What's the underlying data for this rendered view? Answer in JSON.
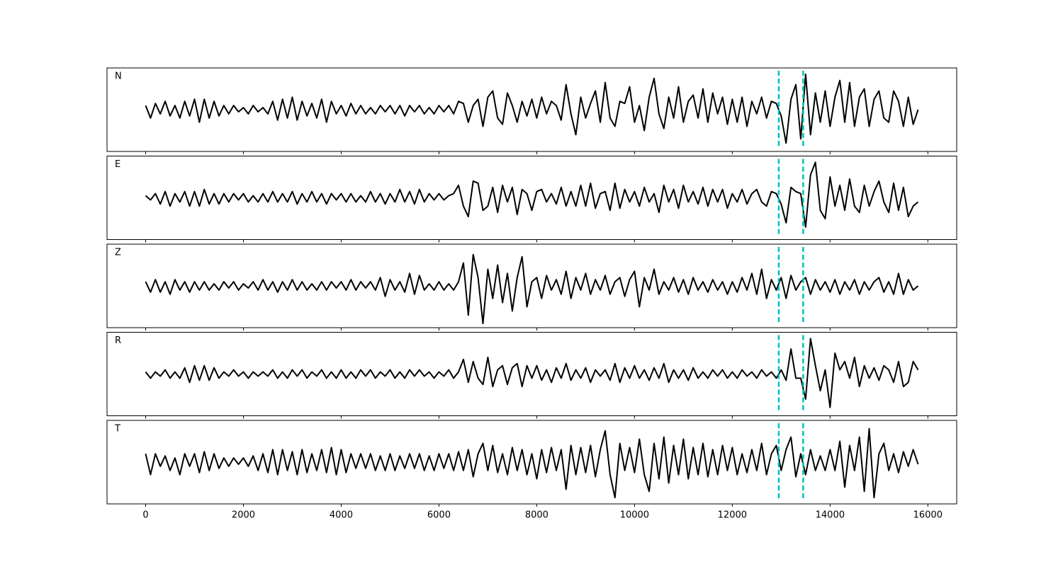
{
  "chart_data": {
    "type": "line",
    "x": [
      0,
      100,
      200,
      300,
      400,
      500,
      600,
      700,
      800,
      900,
      1000,
      1100,
      1200,
      1300,
      1400,
      1500,
      1600,
      1700,
      1800,
      1900,
      2000,
      2100,
      2200,
      2300,
      2400,
      2500,
      2600,
      2700,
      2800,
      2900,
      3000,
      3100,
      3200,
      3300,
      3400,
      3500,
      3600,
      3700,
      3800,
      3900,
      4000,
      4100,
      4200,
      4300,
      4400,
      4500,
      4600,
      4700,
      4800,
      4900,
      5000,
      5100,
      5200,
      5300,
      5400,
      5500,
      5600,
      5700,
      5800,
      5900,
      6000,
      6100,
      6200,
      6300,
      6400,
      6500,
      6600,
      6700,
      6800,
      6900,
      7000,
      7100,
      7200,
      7300,
      7400,
      7500,
      7600,
      7700,
      7800,
      7900,
      8000,
      8100,
      8200,
      8300,
      8400,
      8500,
      8600,
      8700,
      8800,
      8900,
      9000,
      9100,
      9200,
      9300,
      9400,
      9500,
      9600,
      9700,
      9800,
      9900,
      10000,
      10100,
      10200,
      10300,
      10400,
      10500,
      10600,
      10700,
      10800,
      10900,
      11000,
      11100,
      11200,
      11300,
      11400,
      11500,
      11600,
      11700,
      11800,
      11900,
      12000,
      12100,
      12200,
      12300,
      12400,
      12500,
      12600,
      12700,
      12800,
      12900,
      13000,
      13100,
      13200,
      13300,
      13400,
      13500,
      13600,
      13700,
      13800,
      13900,
      14000,
      14100,
      14200,
      14300,
      14400,
      14500,
      14600,
      14700,
      14800,
      14900,
      15000,
      15100,
      15200,
      15300,
      15400,
      15500,
      15600,
      15700,
      15800
    ],
    "series": [
      {
        "name": "N",
        "color": "#000000",
        "values": [
          0.1,
          -0.2,
          0.15,
          -0.1,
          0.2,
          -0.15,
          0.1,
          -0.2,
          0.2,
          -0.15,
          0.25,
          -0.3,
          0.25,
          -0.2,
          0.2,
          -0.15,
          0.1,
          -0.1,
          0.1,
          -0.05,
          0.05,
          -0.1,
          0.1,
          -0.05,
          0.05,
          -0.1,
          0.2,
          -0.25,
          0.25,
          -0.2,
          0.3,
          -0.25,
          0.2,
          -0.15,
          0.15,
          -0.2,
          0.25,
          -0.3,
          0.2,
          -0.1,
          0.1,
          -0.15,
          0.15,
          -0.1,
          0.1,
          -0.1,
          0.05,
          -0.1,
          0.1,
          -0.05,
          0.1,
          -0.1,
          0.1,
          -0.15,
          0.1,
          -0.05,
          0.1,
          -0.1,
          0.05,
          -0.1,
          0.1,
          -0.05,
          0.1,
          -0.1,
          0.2,
          0.15,
          -0.3,
          0.1,
          0.25,
          -0.4,
          0.3,
          0.45,
          -0.2,
          -0.35,
          0.4,
          0.1,
          -0.3,
          0.2,
          -0.15,
          0.25,
          -0.2,
          0.3,
          -0.1,
          0.2,
          0.1,
          -0.25,
          0.6,
          -0.1,
          -0.6,
          0.3,
          -0.2,
          0.15,
          0.45,
          -0.3,
          0.65,
          -0.2,
          -0.4,
          0.2,
          0.15,
          0.55,
          -0.3,
          0.1,
          -0.5,
          0.3,
          0.75,
          -0.1,
          -0.45,
          0.3,
          -0.2,
          0.55,
          -0.3,
          0.2,
          0.35,
          -0.2,
          0.5,
          -0.3,
          0.4,
          -0.1,
          0.3,
          -0.35,
          0.25,
          -0.3,
          0.3,
          -0.4,
          0.2,
          -0.1,
          0.3,
          -0.2,
          0.2,
          0.15,
          -0.15,
          -0.8,
          0.25,
          0.6,
          -0.7,
          0.85,
          -0.6,
          0.4,
          -0.3,
          0.45,
          -0.4,
          0.3,
          0.7,
          -0.3,
          0.65,
          -0.4,
          0.3,
          0.5,
          -0.4,
          0.25,
          0.45,
          -0.2,
          -0.3,
          0.45,
          0.2,
          -0.4,
          0.3,
          -0.35,
          0.0
        ]
      },
      {
        "name": "E",
        "color": "#000000",
        "values": [
          0.05,
          -0.05,
          0.1,
          -0.15,
          0.15,
          -0.2,
          0.1,
          -0.1,
          0.15,
          -0.2,
          0.15,
          -0.2,
          0.2,
          -0.15,
          0.1,
          -0.15,
          0.1,
          -0.1,
          0.1,
          -0.05,
          0.1,
          -0.1,
          0.05,
          -0.1,
          0.1,
          -0.1,
          0.15,
          -0.1,
          0.1,
          -0.1,
          0.15,
          -0.15,
          0.1,
          -0.1,
          0.15,
          -0.1,
          0.1,
          -0.15,
          0.1,
          -0.05,
          0.1,
          -0.1,
          0.1,
          -0.1,
          0.05,
          -0.1,
          0.15,
          -0.1,
          0.1,
          -0.15,
          0.1,
          -0.1,
          0.2,
          -0.1,
          0.15,
          -0.15,
          0.2,
          -0.1,
          0.1,
          -0.05,
          0.1,
          -0.05,
          0.05,
          0.1,
          0.3,
          -0.2,
          -0.45,
          0.4,
          0.35,
          -0.3,
          -0.2,
          0.25,
          -0.35,
          0.3,
          -0.1,
          0.25,
          -0.4,
          0.2,
          0.1,
          -0.3,
          0.15,
          0.2,
          -0.1,
          0.1,
          -0.15,
          0.25,
          -0.2,
          0.15,
          -0.2,
          0.3,
          -0.2,
          0.35,
          -0.25,
          0.1,
          0.15,
          -0.3,
          0.35,
          -0.25,
          0.2,
          -0.1,
          0.15,
          -0.2,
          0.25,
          -0.1,
          0.1,
          -0.35,
          0.3,
          -0.1,
          0.2,
          -0.25,
          0.3,
          -0.1,
          0.15,
          -0.15,
          0.25,
          -0.2,
          0.2,
          -0.1,
          0.2,
          -0.25,
          0.1,
          -0.1,
          0.2,
          -0.15,
          0.1,
          0.2,
          -0.1,
          -0.2,
          0.15,
          0.1,
          -0.15,
          -0.6,
          0.25,
          0.15,
          0.1,
          -0.7,
          0.55,
          0.85,
          -0.3,
          -0.5,
          0.5,
          -0.2,
          0.3,
          -0.3,
          0.45,
          -0.2,
          -0.35,
          0.3,
          -0.2,
          0.15,
          0.4,
          -0.1,
          -0.35,
          0.35,
          -0.3,
          0.25,
          -0.45,
          -0.2,
          -0.1
        ]
      },
      {
        "name": "Z",
        "color": "#000000",
        "values": [
          0.1,
          -0.15,
          0.15,
          -0.15,
          0.1,
          -0.2,
          0.15,
          -0.1,
          0.1,
          -0.15,
          0.1,
          -0.1,
          0.1,
          -0.1,
          0.05,
          -0.1,
          0.1,
          -0.05,
          0.1,
          -0.1,
          0.05,
          -0.05,
          0.1,
          -0.1,
          0.15,
          -0.1,
          0.1,
          -0.15,
          0.1,
          -0.1,
          0.15,
          -0.1,
          0.1,
          -0.1,
          0.05,
          -0.1,
          0.1,
          -0.1,
          0.1,
          -0.05,
          0.1,
          -0.1,
          0.15,
          -0.1,
          0.1,
          -0.05,
          0.1,
          -0.1,
          0.2,
          -0.25,
          0.15,
          -0.1,
          0.1,
          -0.15,
          0.3,
          -0.2,
          0.25,
          -0.1,
          0.05,
          -0.1,
          0.1,
          -0.1,
          0.05,
          -0.1,
          0.1,
          0.55,
          -0.7,
          0.75,
          0.2,
          -0.9,
          0.4,
          -0.3,
          0.5,
          -0.4,
          0.3,
          -0.6,
          0.2,
          0.7,
          -0.5,
          0.1,
          0.2,
          -0.3,
          0.25,
          -0.1,
          0.15,
          -0.2,
          0.35,
          -0.3,
          0.2,
          -0.1,
          0.3,
          -0.2,
          0.15,
          -0.1,
          0.25,
          -0.2,
          0.1,
          0.2,
          -0.25,
          0.15,
          0.35,
          -0.5,
          0.2,
          -0.1,
          0.4,
          -0.2,
          0.1,
          -0.1,
          0.2,
          -0.15,
          0.15,
          -0.2,
          0.2,
          -0.1,
          0.1,
          -0.15,
          0.15,
          -0.1,
          0.1,
          -0.2,
          0.1,
          -0.15,
          0.2,
          -0.1,
          0.3,
          -0.2,
          0.4,
          -0.3,
          0.15,
          -0.1,
          0.2,
          -0.3,
          0.25,
          -0.1,
          0.1,
          0.2,
          -0.2,
          0.15,
          -0.1,
          0.1,
          -0.15,
          0.15,
          -0.2,
          0.1,
          -0.1,
          0.15,
          -0.2,
          0.1,
          -0.1,
          0.1,
          0.2,
          -0.15,
          0.1,
          -0.2,
          0.3,
          -0.2,
          0.15,
          -0.1,
          0.0
        ]
      },
      {
        "name": "R",
        "color": "#000000",
        "values": [
          0.05,
          -0.1,
          0.05,
          -0.05,
          0.1,
          -0.1,
          0.05,
          -0.1,
          0.15,
          -0.2,
          0.2,
          -0.15,
          0.2,
          -0.15,
          0.15,
          -0.1,
          0.05,
          -0.05,
          0.1,
          -0.05,
          0.05,
          -0.1,
          0.05,
          -0.05,
          0.05,
          -0.05,
          0.1,
          -0.1,
          0.05,
          -0.1,
          0.1,
          -0.05,
          0.1,
          -0.1,
          0.05,
          -0.05,
          0.1,
          -0.1,
          0.05,
          -0.1,
          0.1,
          -0.1,
          0.05,
          -0.1,
          0.1,
          -0.05,
          0.1,
          -0.1,
          0.05,
          -0.05,
          0.1,
          -0.1,
          0.05,
          -0.1,
          0.1,
          -0.05,
          0.1,
          -0.05,
          0.05,
          -0.1,
          0.05,
          -0.05,
          0.1,
          -0.1,
          0.05,
          0.35,
          -0.2,
          0.3,
          -0.1,
          -0.25,
          0.4,
          -0.3,
          0.1,
          0.2,
          -0.25,
          0.15,
          0.25,
          -0.3,
          0.2,
          -0.1,
          0.2,
          -0.15,
          0.1,
          -0.2,
          0.15,
          -0.1,
          0.25,
          -0.15,
          0.1,
          -0.1,
          0.15,
          -0.2,
          0.1,
          -0.05,
          0.1,
          -0.15,
          0.25,
          -0.2,
          0.15,
          -0.1,
          0.2,
          -0.1,
          0.1,
          -0.15,
          0.15,
          -0.1,
          0.25,
          -0.2,
          0.1,
          -0.1,
          0.1,
          -0.15,
          0.15,
          -0.1,
          0.05,
          -0.1,
          0.1,
          -0.05,
          0.1,
          -0.1,
          0.05,
          -0.1,
          0.1,
          -0.05,
          0.05,
          -0.1,
          0.1,
          -0.05,
          0.05,
          -0.1,
          0.1,
          -0.15,
          0.6,
          -0.1,
          -0.1,
          -0.6,
          0.85,
          0.2,
          -0.4,
          0.1,
          -0.8,
          0.5,
          0.1,
          0.3,
          -0.1,
          0.4,
          -0.3,
          0.2,
          -0.1,
          0.15,
          -0.15,
          0.2,
          0.1,
          -0.2,
          0.3,
          -0.3,
          -0.2,
          0.3,
          0.1
        ]
      },
      {
        "name": "T",
        "color": "#000000",
        "values": [
          0.2,
          -0.3,
          0.2,
          -0.1,
          0.15,
          -0.2,
          0.1,
          -0.3,
          0.2,
          -0.1,
          0.2,
          -0.25,
          0.25,
          -0.2,
          0.2,
          -0.15,
          0.1,
          -0.1,
          0.1,
          -0.05,
          0.1,
          -0.1,
          0.15,
          -0.2,
          0.2,
          -0.25,
          0.3,
          -0.3,
          0.3,
          -0.2,
          0.25,
          -0.3,
          0.3,
          -0.25,
          0.2,
          -0.2,
          0.3,
          -0.25,
          0.35,
          -0.3,
          0.3,
          -0.25,
          0.2,
          -0.15,
          0.2,
          -0.15,
          0.2,
          -0.2,
          0.15,
          -0.2,
          0.2,
          -0.2,
          0.15,
          -0.15,
          0.2,
          -0.15,
          0.2,
          -0.2,
          0.15,
          -0.2,
          0.2,
          -0.15,
          0.2,
          -0.2,
          0.25,
          -0.2,
          0.3,
          -0.35,
          0.2,
          0.45,
          -0.2,
          0.4,
          -0.25,
          0.2,
          -0.3,
          0.35,
          -0.2,
          0.3,
          -0.3,
          0.2,
          -0.4,
          0.3,
          -0.25,
          0.35,
          -0.2,
          0.3,
          -0.65,
          0.4,
          -0.3,
          0.35,
          -0.25,
          0.4,
          -0.35,
          0.3,
          0.75,
          -0.3,
          -0.85,
          0.45,
          -0.2,
          0.35,
          -0.25,
          0.55,
          -0.3,
          -0.7,
          0.45,
          -0.4,
          0.6,
          -0.5,
          0.4,
          -0.3,
          0.55,
          -0.4,
          0.35,
          -0.3,
          0.45,
          -0.35,
          0.3,
          -0.3,
          0.4,
          -0.2,
          0.35,
          -0.3,
          0.2,
          -0.25,
          0.3,
          -0.2,
          0.45,
          -0.3,
          0.2,
          0.4,
          -0.2,
          0.3,
          0.6,
          -0.35,
          0.2,
          -0.3,
          0.3,
          -0.2,
          0.15,
          -0.2,
          0.3,
          -0.2,
          0.5,
          -0.6,
          0.4,
          -0.2,
          0.6,
          -0.7,
          0.8,
          -0.85,
          0.2,
          0.45,
          -0.2,
          0.2,
          -0.25,
          0.25,
          -0.1,
          0.3,
          -0.05
        ]
      }
    ],
    "vlines": [
      12950,
      13450
    ],
    "vline_color": "#00bfbf",
    "xlim": [
      -790,
      16590
    ],
    "xticks": [
      0,
      2000,
      4000,
      6000,
      8000,
      10000,
      12000,
      14000,
      16000
    ],
    "ylim": [
      -1,
      1
    ]
  }
}
